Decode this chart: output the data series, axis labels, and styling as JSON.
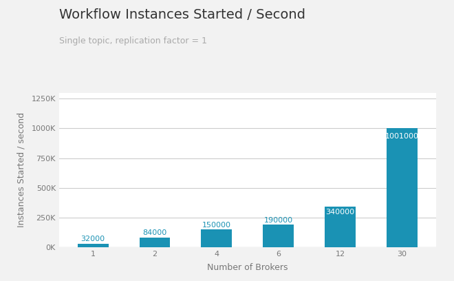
{
  "title": "Workflow Instances Started / Second",
  "subtitle": "Single topic, replication factor = 1",
  "xlabel": "Number of Brokers",
  "ylabel": "Instances Started / second",
  "categories": [
    "1",
    "2",
    "4",
    "6",
    "12",
    "30"
  ],
  "values": [
    32000,
    84000,
    150000,
    190000,
    340000,
    1001000
  ],
  "bar_color": "#1a92b4",
  "label_color_inside": "#ffffff",
  "label_color_outside": "#1a92b4",
  "label_threshold": 200000,
  "ylim": [
    0,
    1300000
  ],
  "yticks": [
    0,
    250000,
    500000,
    750000,
    1000000,
    1250000
  ],
  "ytick_labels": [
    "0K",
    "250K",
    "500K",
    "750K",
    "1000K",
    "1250K"
  ],
  "background_color": "#f2f2f2",
  "plot_bg_color": "#ffffff",
  "grid_color": "#cccccc",
  "title_fontsize": 14,
  "subtitle_fontsize": 9,
  "axis_label_fontsize": 9,
  "tick_fontsize": 8,
  "bar_label_fontsize": 8
}
